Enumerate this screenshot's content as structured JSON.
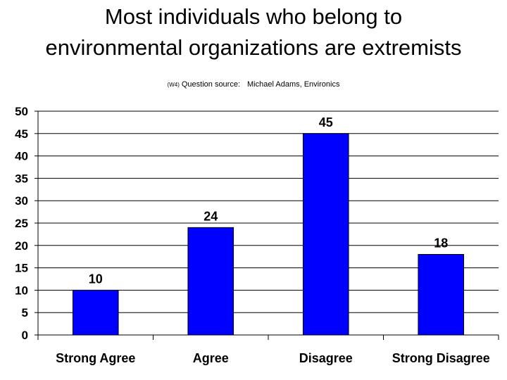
{
  "chart_data": {
    "type": "bar",
    "title_line1": "Most individuals who belong to",
    "title_line2": "environmental organizations are extremists",
    "subtitle_code": "(W4)",
    "subtitle_text": "Question source:",
    "subtitle_source": "Michael Adams, Environics",
    "categories": [
      "Strong Agree",
      "Agree",
      "Disagree",
      "Strong Disagree"
    ],
    "values": [
      10,
      24,
      45,
      18
    ],
    "ylim": [
      0,
      50
    ],
    "yticks": [
      0,
      5,
      10,
      15,
      20,
      25,
      30,
      35,
      40,
      45,
      50
    ],
    "xlabel": "",
    "ylabel": "",
    "grid": true,
    "legend": "none",
    "bar_color": "#0000ff",
    "bar_outline": "#000000"
  }
}
